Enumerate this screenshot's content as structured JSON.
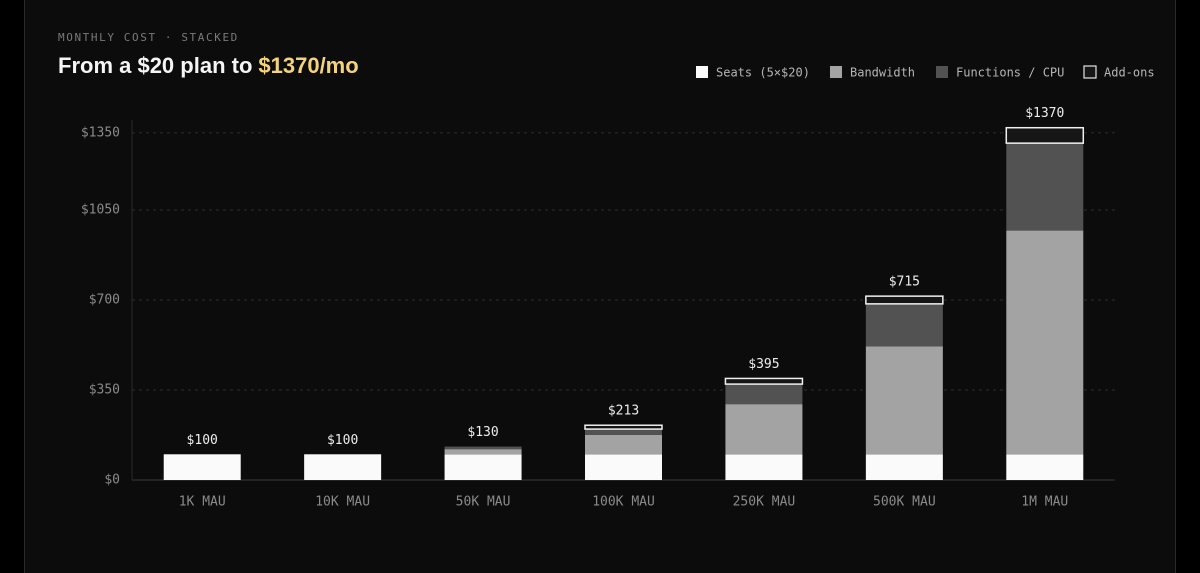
{
  "chart_data": {
    "type": "stacked-bar",
    "subtitle": "MONTHLY COST · STACKED",
    "title": "From a $20 plan to",
    "title_highlight": "$1370/mo",
    "categories": [
      "1K MAU",
      "10K MAU",
      "50K MAU",
      "100K MAU",
      "250K MAU",
      "500K MAU",
      "1M MAU"
    ],
    "series": [
      {
        "name": "Seats (5×$20)",
        "color": "#fafafa",
        "values": [
          100,
          100,
          100,
          100,
          100,
          100,
          100
        ]
      },
      {
        "name": "Bandwidth",
        "color": "#a3a3a3",
        "values": [
          0,
          0,
          20,
          75,
          195,
          420,
          870
        ]
      },
      {
        "name": "Functions / CPU",
        "color": "#525252",
        "values": [
          0,
          0,
          10,
          23,
          78,
          165,
          340
        ]
      },
      {
        "name": "Add-ons",
        "color": "#161616",
        "values": [
          0,
          0,
          0,
          15,
          22,
          30,
          60
        ]
      }
    ],
    "totals": [
      100,
      100,
      130,
      213,
      395,
      715,
      1370
    ],
    "total_labels": [
      "$100",
      "$100",
      "$130",
      "$213",
      "$395",
      "$715",
      "$1370"
    ],
    "ylim": [
      0,
      1400
    ],
    "yticks": [
      {
        "value": 0,
        "label": "$0"
      },
      {
        "value": 350,
        "label": "$350"
      },
      {
        "value": 700,
        "label": "$700"
      },
      {
        "value": 1050,
        "label": "$1050"
      },
      {
        "value": 1350,
        "label": "$1350"
      }
    ],
    "grid": true,
    "legend": "top-right"
  }
}
